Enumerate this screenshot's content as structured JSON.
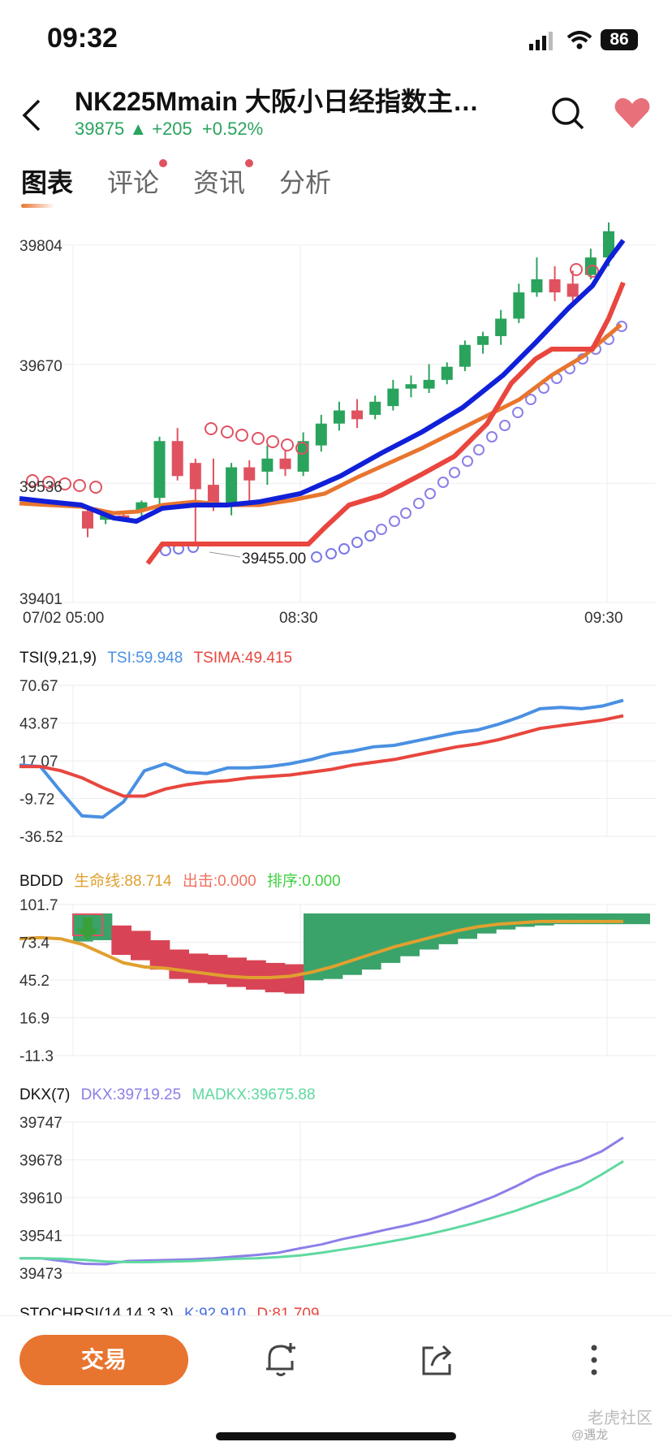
{
  "status": {
    "time": "09:32",
    "battery": "86"
  },
  "header": {
    "title": "NK225Mmain  大阪小日经指数主…",
    "price": "39875",
    "change": "+205",
    "change_pct": "+0.52%"
  },
  "tabs": [
    {
      "label": "图表",
      "active": true
    },
    {
      "label": "评论",
      "dot": true
    },
    {
      "label": "资讯",
      "dot": true
    },
    {
      "label": "分析"
    }
  ],
  "main_chart": {
    "y_ticks": [
      "39804",
      "39670",
      "39536",
      "39401"
    ],
    "x_ticks": [
      "07/02 05:00",
      "08:30",
      "09:30"
    ],
    "low_callout": "39455.00"
  },
  "tsi": {
    "name": "TSI(9,21,9)",
    "tsi_label": "TSI:59.948",
    "tsima_label": "TSIMA:49.415",
    "y_ticks": [
      "70.67",
      "43.87",
      "17.07",
      "-9.72",
      "-36.52"
    ]
  },
  "bddd": {
    "name": "BDDD",
    "line_label": "生命线:88.714",
    "out_label": "出击:0.000",
    "sort_label": "排序:0.000",
    "y_ticks": [
      "101.7",
      "73.4",
      "45.2",
      "16.9",
      "-11.3"
    ]
  },
  "dkx": {
    "name": "DKX(7)",
    "dkx_label": "DKX:39719.25",
    "madkx_label": "MADKX:39675.88",
    "y_ticks": [
      "39747",
      "39678",
      "39610",
      "39541",
      "39473"
    ]
  },
  "stochrsi": {
    "name": "STOCHRSI(14,14,3,3)",
    "k_label": "K:92.910",
    "d_label": "D:81.709"
  },
  "bottom": {
    "trade_label": "交易"
  },
  "footer": {
    "brand": "老虎社区",
    "watermark": "@遇龙"
  },
  "colors": {
    "up": "#2aa35d",
    "down": "#e05260",
    "accent": "#e8752f",
    "tsi": "#4a90e2",
    "tsima": "#e8463e",
    "dkx": "#8b7fe8",
    "madkx": "#5fd9a0",
    "bddd_line": "#e0a030",
    "out": "#f07060",
    "sort": "#40d040"
  },
  "chart_data": [
    {
      "type": "line",
      "title": "NK225Mmain",
      "x": [
        "07/02 05:00",
        "08:30",
        "09:30"
      ],
      "ylim": [
        39401,
        39804
      ],
      "series": []
    },
    {
      "type": "line",
      "title": "TSI(9,21,9)",
      "ylim": [
        -36.52,
        70.67
      ],
      "series": [
        {
          "name": "TSI",
          "values": [
            14,
            13,
            -5,
            -22,
            -23,
            -12,
            10,
            15,
            9,
            8,
            12,
            12,
            13,
            15,
            18,
            22,
            24,
            27,
            28,
            31,
            34,
            37,
            39,
            43,
            48,
            54,
            55,
            54,
            56,
            60
          ]
        },
        {
          "name": "TSIMA",
          "values": [
            13,
            13,
            10,
            5,
            -2,
            -8,
            -8,
            -3,
            0,
            2,
            3,
            5,
            6,
            7,
            9,
            11,
            14,
            16,
            18,
            21,
            24,
            27,
            29,
            32,
            36,
            40,
            42,
            44,
            46,
            49
          ]
        }
      ]
    },
    {
      "type": "area",
      "title": "BDDD",
      "ylim": [
        -11.3,
        101.7
      ],
      "series": [
        {
          "name": "生命线",
          "values": [
            76,
            77,
            76,
            72,
            65,
            58,
            55,
            54,
            52,
            50,
            48,
            47,
            47,
            48,
            51,
            55,
            60,
            65,
            70,
            74,
            78,
            82,
            85,
            87,
            88,
            89,
            89,
            89,
            89,
            89
          ]
        }
      ]
    },
    {
      "type": "line",
      "title": "DKX(7)",
      "ylim": [
        39473,
        39747
      ],
      "series": [
        {
          "name": "DKX",
          "values": [
            39500,
            39500,
            39495,
            39490,
            39489,
            39495,
            39496,
            39497,
            39498,
            39500,
            39503,
            39506,
            39510,
            39518,
            39525,
            39535,
            39543,
            39552,
            39560,
            39570,
            39583,
            39597,
            39612,
            39630,
            39650,
            39665,
            39677,
            39694,
            39719
          ]
        },
        {
          "name": "MADKX",
          "values": [
            39500,
            39500,
            39499,
            39497,
            39494,
            39493,
            39493,
            39494,
            39495,
            39497,
            39499,
            39500,
            39502,
            39505,
            39510,
            39516,
            39522,
            39529,
            39536,
            39544,
            39553,
            39563,
            39574,
            39586,
            39600,
            39614,
            39630,
            39652,
            39676
          ]
        }
      ]
    }
  ]
}
